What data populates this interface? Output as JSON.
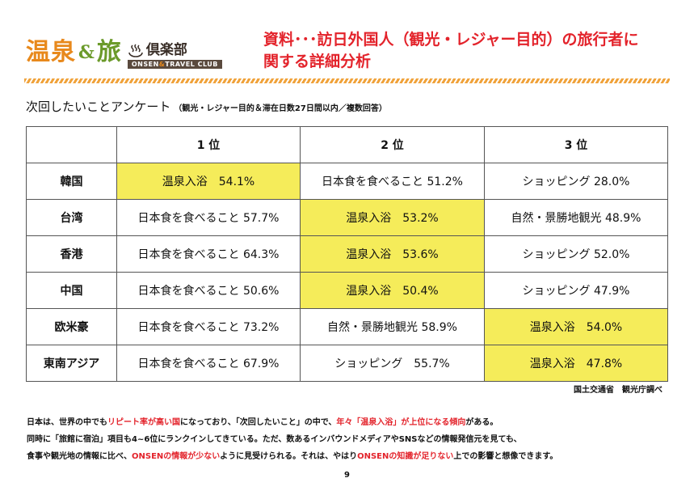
{
  "header": {
    "logo": {
      "onsen": "温泉",
      "amp": "&",
      "tabi": "旅",
      "club_jp": "倶楽部",
      "club_en_1": "ONSEN",
      "club_en_amp": "&",
      "club_en_2": "TRAVEL CLUB",
      "icon": "onsen-mark-icon"
    },
    "title_line1": "資料･･･訪日外国人（観光・レジャー目的）の旅行者に",
    "title_line2": "関する詳細分析"
  },
  "survey": {
    "title": "次回したいことアンケート",
    "subtitle": "（観光・レジャー目的＆滞在日数27日間以内／複数回答）"
  },
  "table": {
    "headers": [
      "",
      "1 位",
      "2 位",
      "3 位"
    ],
    "rows": [
      {
        "country": "韓国",
        "cells": [
          "温泉入浴　54.1%",
          "日本食を食べること 51.2%",
          "ショッピング 28.0%"
        ]
      },
      {
        "country": "台湾",
        "cells": [
          "日本食を食べること 57.7%",
          "温泉入浴　53.2%",
          "自然・景勝地観光 48.9%"
        ]
      },
      {
        "country": "香港",
        "cells": [
          "日本食を食べること 64.3%",
          "温泉入浴　53.6%",
          "ショッピング 52.0%"
        ]
      },
      {
        "country": "中国",
        "cells": [
          "日本食を食べること 50.6%",
          "温泉入浴　50.4%",
          "ショッピング 47.9%"
        ]
      },
      {
        "country": "欧米豪",
        "cells": [
          "日本食を食べること 73.2%",
          "自然・景勝地観光 58.9%",
          "温泉入浴　54.0%"
        ]
      },
      {
        "country": "東南アジア",
        "cells": [
          "日本食を食べること 67.9%",
          "ショッピング　55.7%",
          "温泉入浴　47.8%"
        ]
      }
    ],
    "highlight_color": "#f5ec5a"
  },
  "source": "国土交通省　観光庁調べ",
  "notes": {
    "l1a": "日本は、世界の中でも",
    "l1b": "リピート率が高い国",
    "l1c": "になっており、「次回したいこと」の中で、",
    "l1d": "年々「温泉入浴」が上位になる傾向",
    "l1e": "がある。",
    "l2": "同時に「旅館に宿泊」項目も4~6位にランクインしてきている。ただ、数あるインバウンドメディアやSNSなどの情報発信元を見ても、",
    "l3a": "食事や観光地の情報に比べ、",
    "l3b": "ONSENの情報が少ない",
    "l3c": "ように見受けられる。それは、やはり",
    "l3d": "ONSENの知識が足りない",
    "l3e": "上での影響と想像できます。"
  },
  "page_number": "9",
  "colors": {
    "accent_red": "#e3232b",
    "logo_orange": "#e8891c",
    "logo_green": "#6b9a2a"
  }
}
